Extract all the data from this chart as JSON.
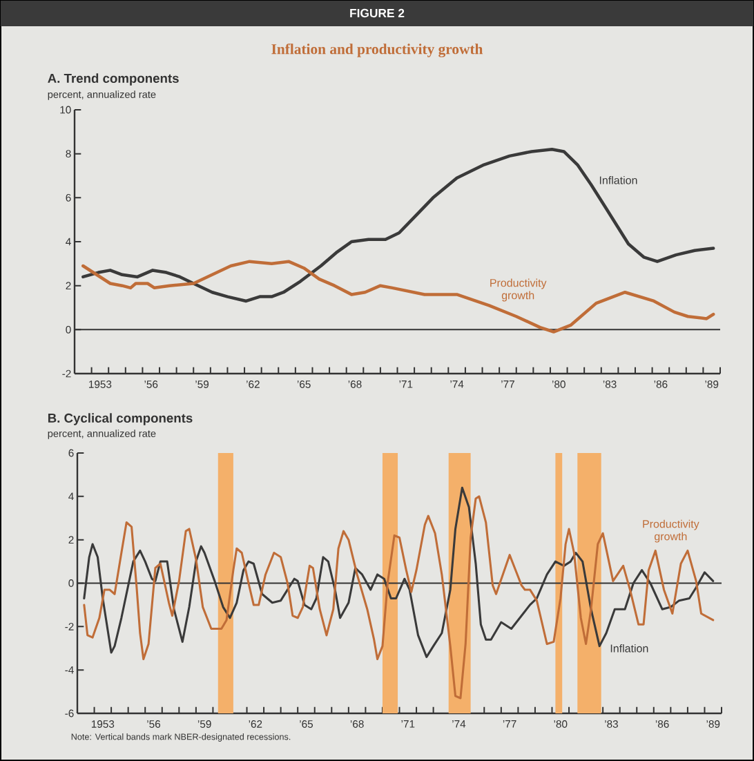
{
  "chart_data": [
    {
      "type": "line",
      "title": "A. Trend components",
      "ylabel": "percent, annualized rate",
      "annotations": [
        "FIGURE 2",
        "Inflation and productivity growth"
      ],
      "xlim": [
        1951.5,
        1989.5
      ],
      "ylim": [
        -2,
        10
      ],
      "yticks": [
        -2,
        0,
        2,
        4,
        6,
        8,
        10
      ],
      "xticks": [
        1953,
        {
          "value": 1956,
          "label": "’56"
        },
        {
          "value": 1959,
          "label": "’59"
        },
        {
          "value": 1962,
          "label": "’62"
        },
        {
          "value": 1965,
          "label": "’65"
        },
        {
          "value": 1968,
          "label": "’68"
        },
        {
          "value": 1971,
          "label": "’71"
        },
        {
          "value": 1974,
          "label": "’74"
        },
        {
          "value": 1977,
          "label": "’77"
        },
        {
          "value": 1980,
          "label": "’80"
        },
        {
          "value": 1983,
          "label": "’83"
        },
        {
          "value": 1986,
          "label": "’86"
        },
        {
          "value": 1989,
          "label": "’89"
        },
        {
          "value": 1952.5,
          "label": null
        },
        {
          "value": 1953.5,
          "label": null
        },
        {
          "value": 1954.5,
          "label": null
        },
        {
          "value": 1955.5,
          "label": null
        },
        {
          "value": 1956.5,
          "label": null
        },
        {
          "value": 1957.5,
          "label": null
        },
        {
          "value": 1958.5,
          "label": null
        },
        {
          "value": 1959.5,
          "label": null
        },
        {
          "value": 1960.5,
          "label": null
        },
        {
          "value": 1961.5,
          "label": null
        },
        {
          "value": 1962.5,
          "label": null
        },
        {
          "value": 1963.5,
          "label": null
        },
        {
          "value": 1964.5,
          "label": null
        },
        {
          "value": 1965.5,
          "label": null
        },
        {
          "value": 1966.5,
          "label": null
        },
        {
          "value": 1967.5,
          "label": null
        },
        {
          "value": 1968.5,
          "label": null
        },
        {
          "value": 1969.5,
          "label": null
        },
        {
          "value": 1970.5,
          "label": null
        },
        {
          "value": 1971.5,
          "label": null
        },
        {
          "value": 1972.5,
          "label": null
        },
        {
          "value": 1973.5,
          "label": null
        },
        {
          "value": 1974.5,
          "label": null
        },
        {
          "value": 1975.5,
          "label": null
        },
        {
          "value": 1976.5,
          "label": null
        },
        {
          "value": 1977.5,
          "label": null
        },
        {
          "value": 1978.5,
          "label": null
        },
        {
          "value": 1979.5,
          "label": null
        },
        {
          "value": 1980.5,
          "label": null
        },
        {
          "value": 1981.5,
          "label": null
        },
        {
          "value": 1982.5,
          "label": null
        },
        {
          "value": 1983.5,
          "label": null
        },
        {
          "value": 1984.5,
          "label": null
        },
        {
          "value": 1985.5,
          "label": null
        },
        {
          "value": 1986.5,
          "label": null
        },
        {
          "value": 1987.5,
          "label": null
        },
        {
          "value": 1988.5,
          "label": null
        },
        {
          "value": 1989.5,
          "label": null
        }
      ],
      "ref_lines": [
        {
          "axis": "y",
          "value": 0,
          "color": "#333333"
        }
      ],
      "series": [
        {
          "name": "Inflation",
          "color": "#3a3a3a",
          "x": [
            1952.0,
            1952.9,
            1953.6,
            1954.3,
            1955.2,
            1956.1,
            1956.9,
            1957.7,
            1958.5,
            1959.6,
            1960.5,
            1961.6,
            1962.4,
            1963.1,
            1963.8,
            1964.8,
            1966.0,
            1966.9,
            1967.8,
            1968.8,
            1969.8,
            1970.6,
            1971.6,
            1972.6,
            1974.0,
            1975.6,
            1977.1,
            1978.4,
            1979.6,
            1980.3,
            1981.1,
            1981.9,
            1982.8,
            1984.1,
            1985.0,
            1985.8,
            1986.9,
            1988.0,
            1989.1
          ],
          "values": [
            2.4,
            2.6,
            2.7,
            2.5,
            2.4,
            2.7,
            2.6,
            2.4,
            2.1,
            1.7,
            1.5,
            1.3,
            1.5,
            1.5,
            1.7,
            2.2,
            2.9,
            3.5,
            4.0,
            4.1,
            4.1,
            4.4,
            5.2,
            6.0,
            6.9,
            7.5,
            7.9,
            8.1,
            8.2,
            8.1,
            7.5,
            6.6,
            5.5,
            3.9,
            3.3,
            3.1,
            3.4,
            3.6,
            3.7
          ]
        },
        {
          "name": "Productivity growth",
          "color": "#c06d38",
          "x": [
            1952.0,
            1952.8,
            1953.6,
            1954.3,
            1954.8,
            1955.1,
            1955.8,
            1956.2,
            1957.1,
            1958.5,
            1959.6,
            1960.7,
            1961.8,
            1963.1,
            1964.1,
            1965.0,
            1965.9,
            1966.8,
            1967.8,
            1968.6,
            1969.5,
            1970.2,
            1972.1,
            1974.0,
            1975.9,
            1977.5,
            1978.9,
            1979.7,
            1980.7,
            1982.2,
            1983.9,
            1985.6,
            1986.8,
            1987.6,
            1988.7,
            1989.1
          ],
          "values": [
            2.9,
            2.5,
            2.1,
            2.0,
            1.9,
            2.1,
            2.1,
            1.9,
            2.0,
            2.1,
            2.5,
            2.9,
            3.1,
            3.0,
            3.1,
            2.8,
            2.3,
            2.0,
            1.6,
            1.7,
            2.0,
            1.9,
            1.6,
            1.6,
            1.1,
            0.6,
            0.1,
            -0.1,
            0.2,
            1.2,
            1.7,
            1.3,
            0.8,
            0.6,
            0.5,
            0.7
          ]
        }
      ]
    },
    {
      "type": "line",
      "title": "B. Cyclical components",
      "ylabel": "percent, annualized rate",
      "annotations": [
        "Note: Vertical bands mark NBER-designated recessions."
      ],
      "xlim": [
        1951.5,
        1989.5
      ],
      "ylim": [
        -6,
        6
      ],
      "yticks": [
        -6,
        -4,
        -2,
        0,
        2,
        4,
        6
      ],
      "xticks": [
        1953,
        {
          "value": 1956,
          "label": "’56"
        },
        {
          "value": 1959,
          "label": "’59"
        },
        {
          "value": 1962,
          "label": "’62"
        },
        {
          "value": 1965,
          "label": "’65"
        },
        {
          "value": 1968,
          "label": "’68"
        },
        {
          "value": 1971,
          "label": "’71"
        },
        {
          "value": 1974,
          "label": "’74"
        },
        {
          "value": 1977,
          "label": "’77"
        },
        {
          "value": 1980,
          "label": "’80"
        },
        {
          "value": 1983,
          "label": "’83"
        },
        {
          "value": 1986,
          "label": "’86"
        },
        {
          "value": 1989,
          "label": "’89"
        },
        {
          "value": 1952.5,
          "label": null
        },
        {
          "value": 1953.5,
          "label": null
        },
        {
          "value": 1954.5,
          "label": null
        },
        {
          "value": 1955.5,
          "label": null
        },
        {
          "value": 1956.5,
          "label": null
        },
        {
          "value": 1957.5,
          "label": null
        },
        {
          "value": 1958.5,
          "label": null
        },
        {
          "value": 1959.5,
          "label": null
        },
        {
          "value": 1960.5,
          "label": null
        },
        {
          "value": 1961.5,
          "label": null
        },
        {
          "value": 1962.5,
          "label": null
        },
        {
          "value": 1963.5,
          "label": null
        },
        {
          "value": 1964.5,
          "label": null
        },
        {
          "value": 1965.5,
          "label": null
        },
        {
          "value": 1966.5,
          "label": null
        },
        {
          "value": 1967.5,
          "label": null
        },
        {
          "value": 1968.5,
          "label": null
        },
        {
          "value": 1969.5,
          "label": null
        },
        {
          "value": 1970.5,
          "label": null
        },
        {
          "value": 1971.5,
          "label": null
        },
        {
          "value": 1972.5,
          "label": null
        },
        {
          "value": 1973.5,
          "label": null
        },
        {
          "value": 1974.5,
          "label": null
        },
        {
          "value": 1975.5,
          "label": null
        },
        {
          "value": 1976.5,
          "label": null
        },
        {
          "value": 1977.5,
          "label": null
        },
        {
          "value": 1978.5,
          "label": null
        },
        {
          "value": 1979.5,
          "label": null
        },
        {
          "value": 1980.5,
          "label": null
        },
        {
          "value": 1981.5,
          "label": null
        },
        {
          "value": 1982.5,
          "label": null
        },
        {
          "value": 1983.5,
          "label": null
        },
        {
          "value": 1984.5,
          "label": null
        },
        {
          "value": 1985.5,
          "label": null
        },
        {
          "value": 1986.5,
          "label": null
        },
        {
          "value": 1987.5,
          "label": null
        },
        {
          "value": 1988.5,
          "label": null
        },
        {
          "value": 1989.5,
          "label": null
        }
      ],
      "ref_lines": [
        {
          "axis": "y",
          "value": 0,
          "color": "#333333"
        }
      ],
      "bands": [
        {
          "axis": "x",
          "from": 1959.8,
          "to": 1960.7,
          "color": "#f4b06a"
        },
        {
          "axis": "x",
          "from": 1969.5,
          "to": 1970.4,
          "color": "#f4b06a"
        },
        {
          "axis": "x",
          "from": 1973.4,
          "to": 1974.7,
          "color": "#f4b06a"
        },
        {
          "axis": "x",
          "from": 1979.7,
          "to": 1980.1,
          "color": "#f4b06a"
        },
        {
          "axis": "x",
          "from": 1981.0,
          "to": 1982.4,
          "color": "#f4b06a"
        }
      ],
      "series": [
        {
          "name": "Inflation",
          "color": "#3a3a3a",
          "x": [
            1951.9,
            1952.2,
            1952.4,
            1952.7,
            1953.0,
            1953.5,
            1953.7,
            1954.1,
            1954.8,
            1955.2,
            1955.5,
            1955.9,
            1956.1,
            1956.4,
            1956.8,
            1957.2,
            1957.7,
            1958.1,
            1958.5,
            1958.8,
            1959.0,
            1959.6,
            1960.1,
            1960.5,
            1960.9,
            1961.3,
            1961.6,
            1961.9,
            1962.4,
            1963.0,
            1963.5,
            1963.9,
            1964.3,
            1964.5,
            1964.9,
            1965.3,
            1965.6,
            1966.0,
            1966.3,
            1966.7,
            1967.0,
            1967.5,
            1967.9,
            1968.3,
            1968.8,
            1969.2,
            1969.6,
            1970.0,
            1970.3,
            1970.8,
            1971.1,
            1971.6,
            1972.1,
            1972.5,
            1973.0,
            1973.5,
            1973.8,
            1974.2,
            1974.6,
            1975.0,
            1975.3,
            1975.6,
            1975.9,
            1976.5,
            1977.1,
            1977.8,
            1978.2,
            1978.6,
            1979.2,
            1979.7,
            1980.2,
            1980.6,
            1980.9,
            1981.3,
            1981.8,
            1982.3,
            1982.7,
            1983.2,
            1983.8,
            1984.3,
            1984.8,
            1985.3,
            1986.0,
            1986.5,
            1987.0,
            1987.6,
            1988.0,
            1988.5,
            1989.0
          ],
          "values": [
            -0.7,
            1.2,
            1.8,
            1.2,
            -0.7,
            -3.2,
            -2.9,
            -1.6,
            1.0,
            1.5,
            1.0,
            0.2,
            0.1,
            1.0,
            1.0,
            -1.2,
            -2.7,
            -1.1,
            1.0,
            1.7,
            1.4,
            0.1,
            -1.1,
            -1.6,
            -0.9,
            0.6,
            1.0,
            0.9,
            -0.5,
            -0.9,
            -0.8,
            -0.3,
            0.2,
            0.1,
            -1.0,
            -1.2,
            -0.7,
            1.2,
            1.0,
            -0.3,
            -1.6,
            -0.9,
            0.7,
            0.4,
            -0.3,
            0.4,
            0.2,
            -0.7,
            -0.7,
            0.2,
            -0.3,
            -2.4,
            -3.4,
            -2.9,
            -2.3,
            -0.3,
            2.5,
            4.4,
            3.5,
            0.9,
            -1.9,
            -2.6,
            -2.6,
            -1.8,
            -2.1,
            -1.4,
            -1.0,
            -0.7,
            0.4,
            1.0,
            0.8,
            1.0,
            1.4,
            1.0,
            -1.2,
            -2.9,
            -2.3,
            -1.2,
            -1.2,
            0.0,
            0.6,
            0.0,
            -1.2,
            -1.1,
            -0.8,
            -0.7,
            -0.2,
            0.5,
            0.1
          ]
        },
        {
          "name": "Productivity growth",
          "color": "#c06d38",
          "x": [
            1951.9,
            1952.1,
            1952.4,
            1952.8,
            1953.1,
            1953.4,
            1953.7,
            1954.1,
            1954.4,
            1954.7,
            1955.0,
            1955.2,
            1955.4,
            1955.7,
            1956.1,
            1956.4,
            1956.9,
            1957.1,
            1957.5,
            1957.9,
            1958.1,
            1958.5,
            1958.9,
            1959.4,
            1960.0,
            1960.3,
            1960.7,
            1960.9,
            1961.2,
            1961.6,
            1961.9,
            1962.2,
            1962.6,
            1963.1,
            1963.5,
            1963.9,
            1964.2,
            1964.5,
            1964.8,
            1965.2,
            1965.4,
            1965.8,
            1966.2,
            1966.6,
            1966.9,
            1967.2,
            1967.5,
            1968.0,
            1968.6,
            1969.0,
            1969.2,
            1969.5,
            1969.8,
            1970.2,
            1970.5,
            1970.9,
            1971.2,
            1971.5,
            1972.0,
            1972.2,
            1972.6,
            1973.0,
            1973.5,
            1973.8,
            1974.1,
            1974.4,
            1974.7,
            1975.0,
            1975.2,
            1975.6,
            1976.0,
            1976.2,
            1976.6,
            1977.0,
            1977.4,
            1977.7,
            1977.9,
            1978.2,
            1978.6,
            1979.2,
            1979.6,
            1980.0,
            1980.3,
            1980.5,
            1980.8,
            1981.2,
            1981.5,
            1981.8,
            1982.2,
            1982.5,
            1983.1,
            1983.7,
            1984.1,
            1984.6,
            1984.9,
            1985.2,
            1985.6,
            1986.1,
            1986.6,
            1987.1,
            1987.5,
            1988.0,
            1988.3,
            1989.0
          ],
          "values": [
            -1.0,
            -2.4,
            -2.5,
            -1.6,
            -0.3,
            -0.3,
            -0.5,
            1.4,
            2.8,
            2.6,
            -0.2,
            -2.3,
            -3.5,
            -2.8,
            0.7,
            0.9,
            -0.9,
            -1.5,
            0.1,
            2.4,
            2.5,
            1.1,
            -1.1,
            -2.1,
            -2.1,
            -1.7,
            0.6,
            1.6,
            1.4,
            0.0,
            -1.0,
            -1.0,
            0.4,
            1.4,
            1.2,
            0.0,
            -1.5,
            -1.6,
            -1.1,
            0.8,
            0.7,
            -1.2,
            -2.4,
            -1.2,
            1.6,
            2.4,
            2.0,
            0.4,
            -1.2,
            -2.6,
            -3.5,
            -2.9,
            0.0,
            2.2,
            2.1,
            0.6,
            -0.4,
            0.6,
            2.7,
            3.1,
            2.3,
            0.4,
            -2.9,
            -5.2,
            -5.3,
            -2.8,
            2.1,
            3.9,
            4.0,
            2.8,
            -0.1,
            -0.5,
            0.4,
            1.3,
            0.5,
            -0.1,
            -0.3,
            -0.3,
            -0.8,
            -2.8,
            -2.7,
            -0.7,
            1.8,
            2.5,
            1.4,
            -1.6,
            -2.8,
            -1.2,
            1.8,
            2.3,
            0.1,
            0.8,
            -0.3,
            -1.9,
            -1.9,
            0.6,
            1.5,
            -0.3,
            -1.4,
            0.9,
            1.5,
            0.1,
            -1.4,
            -1.7
          ]
        }
      ]
    }
  ]
}
